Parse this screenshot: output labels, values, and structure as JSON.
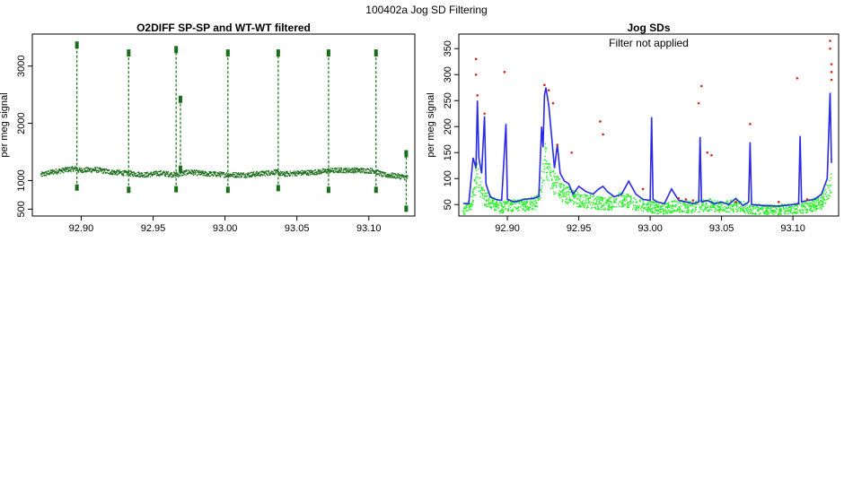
{
  "page": {
    "title": "100402a   Jog SD Filtering"
  },
  "colors": {
    "dark_green": "#1a6e1a",
    "blue": "#2a2ae8",
    "light_green": "#22ee22",
    "red": "#cc2a1a"
  },
  "chart_data": [
    {
      "type": "scatter",
      "title": "O2DIFF SP-SP and WT-WT filtered",
      "xlabel": "",
      "ylabel": "per meg signal",
      "xlim": [
        92.866,
        93.132
      ],
      "ylim": [
        380,
        3560
      ],
      "x_ticks": [
        92.9,
        92.95,
        93.0,
        93.05,
        93.1
      ],
      "x_tick_labels": [
        "92.90",
        "92.95",
        "93.00",
        "93.05",
        "93.10"
      ],
      "y_ticks": [
        500,
        1000,
        2000,
        3000
      ],
      "y_tick_labels": [
        "500",
        "1000",
        "2000",
        "3000"
      ],
      "series": [
        {
          "color": "#1a6e1a",
          "baseline": [
            [
              92.872,
              1100
            ],
            [
              92.88,
              1150
            ],
            [
              92.89,
              1190
            ],
            [
              92.897,
              1210
            ],
            [
              92.898,
              1180
            ],
            [
              92.91,
              1190
            ],
            [
              92.92,
              1150
            ],
            [
              92.93,
              1130
            ],
            [
              92.935,
              1120
            ],
            [
              92.945,
              1100
            ],
            [
              92.955,
              1130
            ],
            [
              92.962,
              1110
            ],
            [
              92.966,
              1100
            ],
            [
              92.975,
              1150
            ],
            [
              92.985,
              1120
            ],
            [
              92.995,
              1110
            ],
            [
              93.002,
              1100
            ],
            [
              93.015,
              1100
            ],
            [
              93.025,
              1120
            ],
            [
              93.035,
              1150
            ],
            [
              93.04,
              1110
            ],
            [
              93.05,
              1130
            ],
            [
              93.06,
              1140
            ],
            [
              93.072,
              1170
            ],
            [
              93.08,
              1180
            ],
            [
              93.09,
              1180
            ],
            [
              93.104,
              1170
            ],
            [
              93.11,
              1100
            ],
            [
              93.12,
              1080
            ],
            [
              93.127,
              1050
            ]
          ],
          "spikes": [
            {
              "x": 92.897,
              "low": 870,
              "high": 3400
            },
            {
              "x": 92.933,
              "low": 830,
              "high": 3260
            },
            {
              "x": 92.966,
              "low": 840,
              "high": 3320
            },
            {
              "x": 92.969,
              "low": 1200,
              "high": 2450
            },
            {
              "x": 93.002,
              "low": 830,
              "high": 3260
            },
            {
              "x": 93.037,
              "low": 860,
              "high": 3260
            },
            {
              "x": 93.072,
              "low": 830,
              "high": 3260
            },
            {
              "x": 93.105,
              "low": 830,
              "high": 3260
            },
            {
              "x": 93.126,
              "low": 500,
              "high": 1500
            }
          ]
        }
      ]
    },
    {
      "type": "line",
      "title": "Jog SDs",
      "annotation": "Filter not applied",
      "xlabel": "",
      "ylabel": "per meg signal",
      "xlim": [
        92.866,
        93.132
      ],
      "ylim": [
        28,
        378
      ],
      "x_ticks": [
        92.9,
        92.95,
        93.0,
        93.05,
        93.1
      ],
      "x_tick_labels": [
        "92.90",
        "92.95",
        "93.00",
        "93.05",
        "93.10"
      ],
      "y_ticks": [
        50,
        100,
        150,
        200,
        250,
        300,
        350
      ],
      "y_tick_labels": [
        "50",
        "100",
        "150",
        "200",
        "250",
        "300",
        "350"
      ],
      "series": [
        {
          "color": "#2a2ae8",
          "line": [
            [
              92.869,
              52
            ],
            [
              92.873,
              52
            ],
            [
              92.876,
              140
            ],
            [
              92.878,
              120
            ],
            [
              92.879,
              250
            ],
            [
              92.88,
              140
            ],
            [
              92.882,
              110
            ],
            [
              92.884,
              220
            ],
            [
              92.885,
              90
            ],
            [
              92.888,
              65
            ],
            [
              92.892,
              60
            ],
            [
              92.896,
              58
            ],
            [
              92.899,
              205
            ],
            [
              92.9,
              60
            ],
            [
              92.905,
              55
            ],
            [
              92.912,
              60
            ],
            [
              92.918,
              62
            ],
            [
              92.922,
              65
            ],
            [
              92.924,
              200
            ],
            [
              92.925,
              160
            ],
            [
              92.926,
              260
            ],
            [
              92.927,
              275
            ],
            [
              92.929,
              240
            ],
            [
              92.931,
              180
            ],
            [
              92.933,
              120
            ],
            [
              92.935,
              165
            ],
            [
              92.937,
              110
            ],
            [
              92.94,
              95
            ],
            [
              92.943,
              90
            ],
            [
              92.946,
              70
            ],
            [
              92.95,
              85
            ],
            [
              92.955,
              75
            ],
            [
              92.96,
              70
            ],
            [
              92.964,
              80
            ],
            [
              92.967,
              85
            ],
            [
              92.97,
              75
            ],
            [
              92.975,
              65
            ],
            [
              92.98,
              70
            ],
            [
              92.985,
              95
            ],
            [
              92.99,
              70
            ],
            [
              92.995,
              60
            ],
            [
              93.0,
              58
            ],
            [
              93.001,
              218
            ],
            [
              93.002,
              60
            ],
            [
              93.005,
              55
            ],
            [
              93.01,
              52
            ],
            [
              93.015,
              80
            ],
            [
              93.02,
              58
            ],
            [
              93.025,
              55
            ],
            [
              93.03,
              52
            ],
            [
              93.034,
              55
            ],
            [
              93.035,
              180
            ],
            [
              93.036,
              55
            ],
            [
              93.04,
              58
            ],
            [
              93.045,
              52
            ],
            [
              93.05,
              55
            ],
            [
              93.055,
              50
            ],
            [
              93.06,
              62
            ],
            [
              93.065,
              48
            ],
            [
              93.069,
              55
            ],
            [
              93.07,
              170
            ],
            [
              93.071,
              50
            ],
            [
              93.08,
              48
            ],
            [
              93.09,
              47
            ],
            [
              93.1,
              50
            ],
            [
              93.104,
              52
            ],
            [
              93.105,
              182
            ],
            [
              93.106,
              55
            ],
            [
              93.11,
              58
            ],
            [
              93.115,
              60
            ],
            [
              93.12,
              70
            ],
            [
              93.124,
              100
            ],
            [
              93.126,
              265
            ],
            [
              93.127,
              130
            ]
          ]
        },
        {
          "color": "#22ee22",
          "line": [
            [
              92.869,
              38
            ],
            [
              92.875,
              55
            ],
            [
              92.879,
              110
            ],
            [
              92.882,
              70
            ],
            [
              92.888,
              55
            ],
            [
              92.895,
              45
            ],
            [
              92.905,
              48
            ],
            [
              92.915,
              50
            ],
            [
              92.922,
              55
            ],
            [
              92.925,
              110
            ],
            [
              92.927,
              140
            ],
            [
              92.93,
              100
            ],
            [
              92.935,
              85
            ],
            [
              92.94,
              70
            ],
            [
              92.95,
              60
            ],
            [
              92.96,
              55
            ],
            [
              92.97,
              50
            ],
            [
              92.98,
              60
            ],
            [
              92.99,
              50
            ],
            [
              93.0,
              45
            ],
            [
              93.01,
              42
            ],
            [
              93.02,
              48
            ],
            [
              93.03,
              45
            ],
            [
              93.04,
              50
            ],
            [
              93.05,
              45
            ],
            [
              93.06,
              48
            ],
            [
              93.07,
              42
            ],
            [
              93.08,
              40
            ],
            [
              93.09,
              40
            ],
            [
              93.1,
              42
            ],
            [
              93.11,
              45
            ],
            [
              93.12,
              55
            ],
            [
              93.127,
              90
            ]
          ]
        },
        {
          "color": "#cc2a1a",
          "points": [
            [
              92.878,
              330
            ],
            [
              92.878,
              300
            ],
            [
              92.879,
              260
            ],
            [
              92.884,
              225
            ],
            [
              92.898,
              305
            ],
            [
              92.926,
              280
            ],
            [
              92.929,
              270
            ],
            [
              92.932,
              245
            ],
            [
              92.935,
              165
            ],
            [
              92.945,
              150
            ],
            [
              92.965,
              210
            ],
            [
              92.967,
              185
            ],
            [
              92.995,
              80
            ],
            [
              93.034,
              245
            ],
            [
              93.036,
              278
            ],
            [
              93.04,
              150
            ],
            [
              93.043,
              145
            ],
            [
              93.07,
              205
            ],
            [
              93.103,
              293
            ],
            [
              93.126,
              365
            ],
            [
              93.126,
              350
            ],
            [
              93.127,
              320
            ],
            [
              93.127,
              305
            ],
            [
              93.127,
              290
            ],
            [
              93.02,
              62
            ],
            [
              93.025,
              60
            ],
            [
              93.03,
              58
            ],
            [
              93.06,
              55
            ],
            [
              93.09,
              55
            ],
            [
              93.11,
              60
            ]
          ]
        }
      ]
    }
  ]
}
